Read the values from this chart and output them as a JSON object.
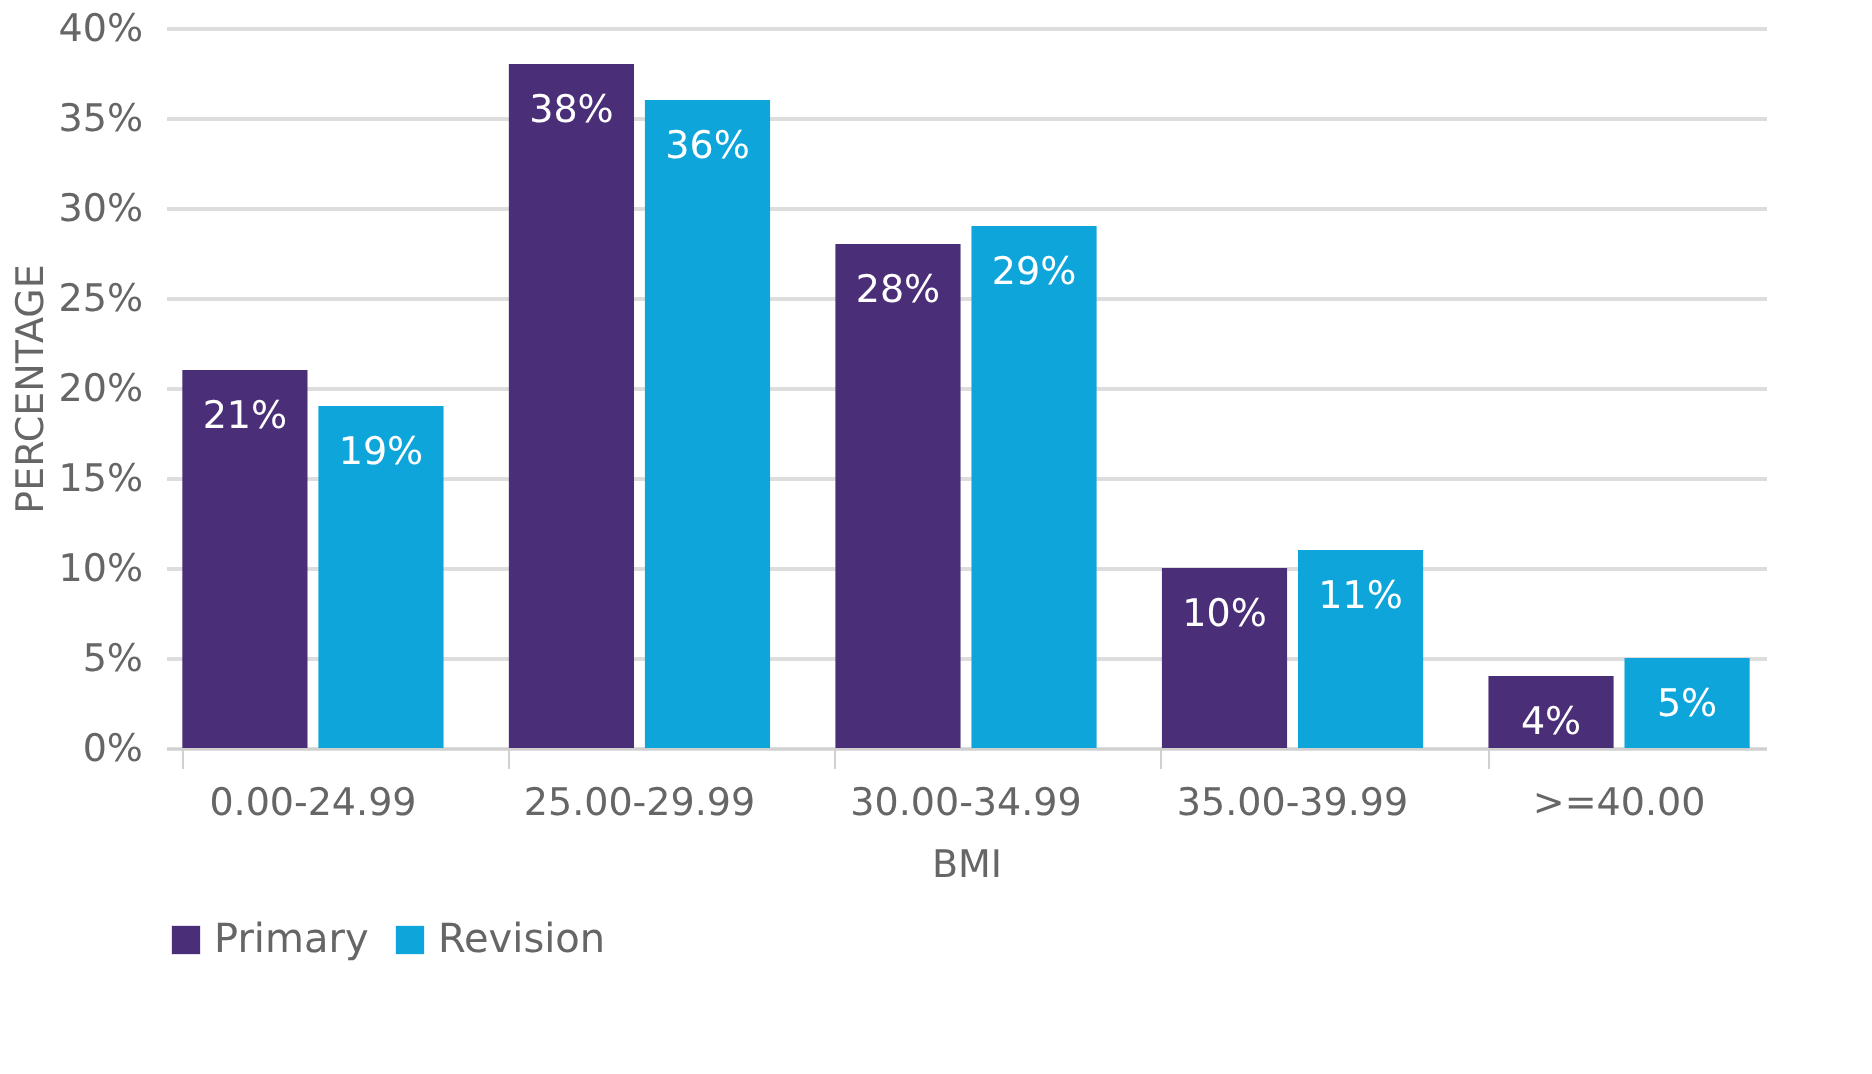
{
  "chart_data": {
    "type": "bar",
    "xlabel": "BMI",
    "ylabel": "PERCENTAGE",
    "categories": [
      "0.00-24.99",
      "25.00-29.99",
      "30.00-34.99",
      "35.00-39.99",
      ">=40.00"
    ],
    "series": [
      {
        "name": "Primary",
        "color": "#4a2f78",
        "values": [
          21,
          38,
          28,
          10,
          4
        ],
        "value_labels": [
          "21%",
          "38%",
          "28%",
          "10%",
          "4%"
        ]
      },
      {
        "name": "Revision",
        "color": "#0ea5da",
        "values": [
          19,
          36,
          29,
          11,
          5
        ],
        "value_labels": [
          "19%",
          "36%",
          "29%",
          "11%",
          "5%"
        ]
      }
    ],
    "ylim": [
      0,
      40
    ],
    "yticks": [
      {
        "value": 0,
        "label": "0%"
      },
      {
        "value": 5,
        "label": "5%"
      },
      {
        "value": 10,
        "label": "10%"
      },
      {
        "value": 15,
        "label": "15%"
      },
      {
        "value": 20,
        "label": "20%"
      },
      {
        "value": 25,
        "label": "25%"
      },
      {
        "value": 30,
        "label": "30%"
      },
      {
        "value": 35,
        "label": "35%"
      },
      {
        "value": 40,
        "label": "40%"
      }
    ],
    "grid": "y",
    "legend": "bottom"
  }
}
